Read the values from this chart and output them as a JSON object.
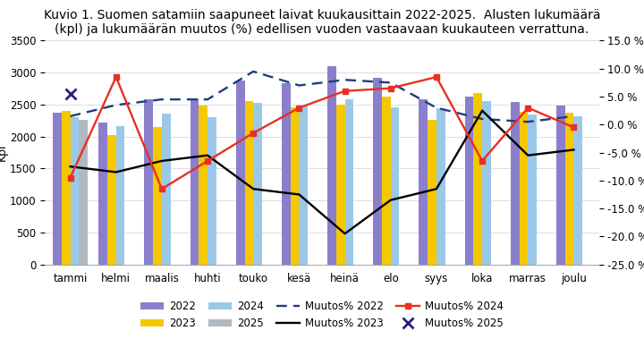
{
  "title": "Kuvio 1. Suomen satamiin saapuneet laivat kuukausittain 2022-2025.  Alusten lukumäärä\n(kpl) ja lukumäärän muutos (%) edellisen vuoden vastaavaan kuukauteen verrattuna.",
  "months": [
    "tammi",
    "helmi",
    "maalis",
    "huhti",
    "touko",
    "kesä",
    "heinä",
    "elo",
    "syys",
    "loka",
    "marras",
    "joulu"
  ],
  "bars_2022": [
    2370,
    2220,
    2590,
    2600,
    2880,
    2840,
    3100,
    2920,
    2590,
    2620,
    2540,
    2480
  ],
  "bars_2023": [
    2400,
    2020,
    2150,
    2480,
    2560,
    2460,
    2500,
    2620,
    2260,
    2680,
    2390,
    2370
  ],
  "bars_2024": [
    2300,
    2160,
    2360,
    2310,
    2530,
    2490,
    2590,
    2460,
    2440,
    2550,
    2350,
    2320
  ],
  "bars_2025": [
    2260,
    null,
    null,
    null,
    null,
    null,
    null,
    null,
    null,
    null,
    null,
    null
  ],
  "muutos_2022_vals": [
    1.5,
    3.5,
    4.5,
    4.5,
    9.5,
    7.0,
    8.0,
    7.5,
    3.0,
    1.0,
    0.5,
    1.5
  ],
  "muutos_2023": [
    -7.5,
    -8.5,
    -6.5,
    -5.5,
    -11.5,
    -12.5,
    -19.5,
    -13.5,
    -11.5,
    2.5,
    -5.5,
    -4.5
  ],
  "muutos_2024": [
    -9.5,
    8.5,
    -11.5,
    -6.5,
    -1.5,
    3.0,
    6.0,
    6.5,
    8.5,
    -6.5,
    3.0,
    -0.5
  ],
  "muutos_2025_x": [
    0
  ],
  "muutos_2025_y": [
    5.5
  ],
  "bar_color_2022": "#8B7FCC",
  "bar_color_2023": "#F5C800",
  "bar_color_2024": "#9CC8E8",
  "bar_color_2025": "#B0B8C0",
  "line_color_2022": "#1F3E7A",
  "line_color_2023": "#000000",
  "line_color_2024": "#E83020",
  "line_color_2025": "#2A207A",
  "ylim_left": [
    0,
    3500
  ],
  "ylim_right": [
    -25.0,
    15.0
  ],
  "ylabel_left": "Kpl",
  "yticks_right": [
    -25.0,
    -20.0,
    -15.0,
    -10.0,
    -5.0,
    0.0,
    5.0,
    10.0,
    15.0
  ],
  "yticks_left": [
    0,
    500,
    1000,
    1500,
    2000,
    2500,
    3000,
    3500
  ],
  "background_color": "#FFFFFF",
  "title_fontsize": 10
}
